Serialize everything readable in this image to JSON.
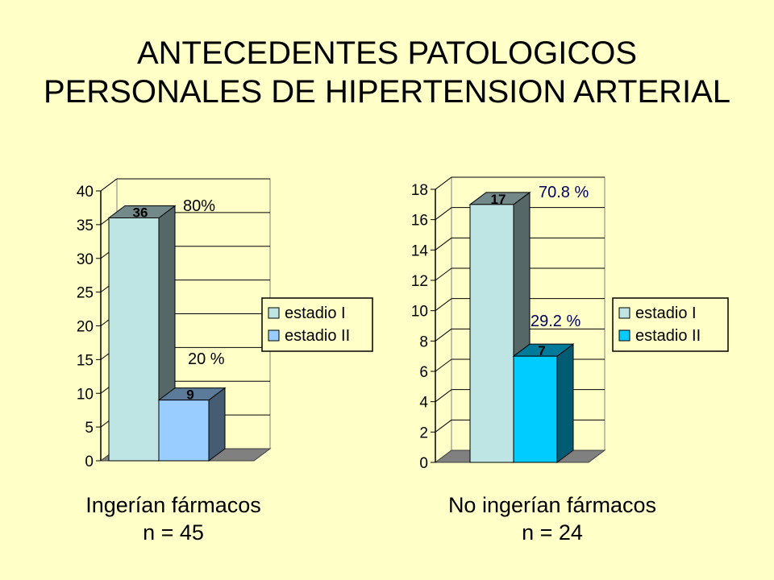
{
  "title_line1": "ANTECEDENTES PATOLOGICOS",
  "title_line2": "PERSONALES DE HIPERTENSION ARTERIAL",
  "chart_data": [
    {
      "type": "bar",
      "title": "",
      "categories": [
        "estadio I",
        "estadio II"
      ],
      "values": [
        36,
        9
      ],
      "value_labels": [
        "36",
        "9"
      ],
      "percent_labels": [
        "80%",
        "20 %"
      ],
      "colors": [
        "#bfe4e4",
        "#99ccff"
      ],
      "ylim": [
        0,
        40
      ],
      "yticks": [
        0,
        5,
        10,
        15,
        20,
        25,
        30,
        35,
        40
      ],
      "grid": true,
      "legend_position": "right",
      "legend": [
        "estadio I",
        "estadio II"
      ],
      "caption_line1": "Ingerían  fármacos",
      "caption_line2": "n = 45"
    },
    {
      "type": "bar",
      "title": "",
      "categories": [
        "estadio I",
        "estadio II"
      ],
      "values": [
        17,
        7
      ],
      "value_labels": [
        "17",
        "7"
      ],
      "percent_labels": [
        "70.8 %",
        "29.2 %"
      ],
      "colors": [
        "#bfe4e4",
        "#00ccff"
      ],
      "ylim": [
        0,
        18
      ],
      "yticks": [
        0,
        2,
        4,
        6,
        8,
        10,
        12,
        14,
        16,
        18
      ],
      "grid": true,
      "legend_position": "right",
      "legend": [
        "estadio I",
        "estadio II"
      ],
      "caption_line1": "No ingerían fármacos",
      "caption_line2": "n = 24"
    }
  ]
}
